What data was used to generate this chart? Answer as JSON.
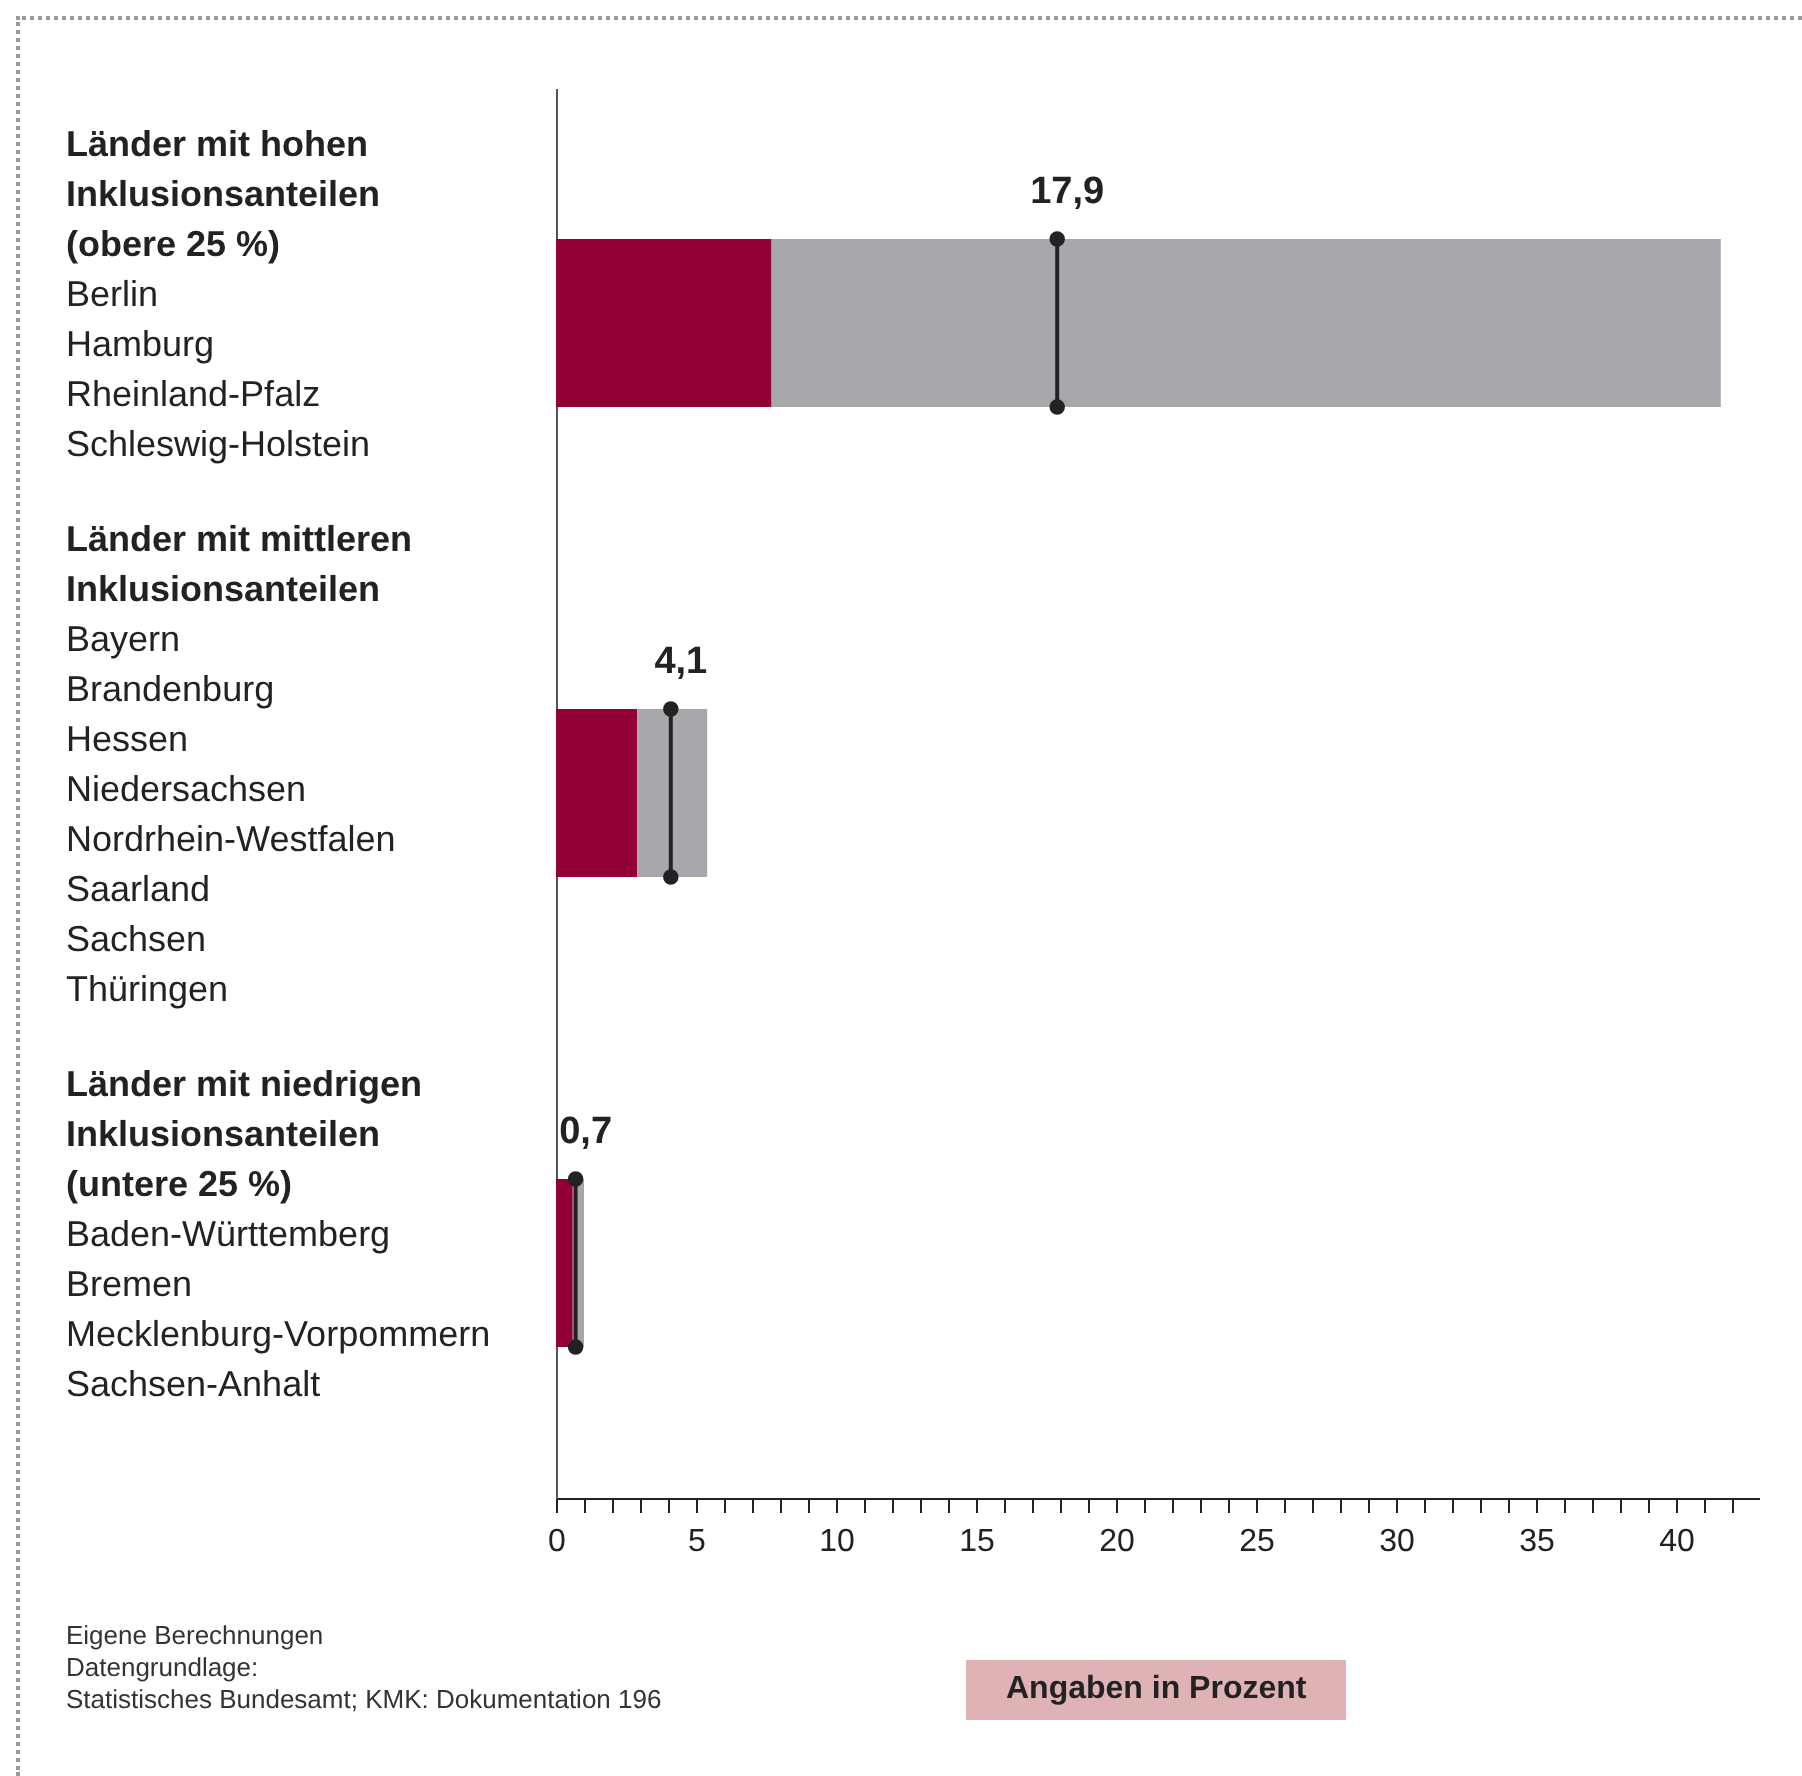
{
  "chart_data": {
    "type": "bar",
    "orientation": "horizontal",
    "stacked": true,
    "categories": [
      "Länder mit hohen\nInklusionsanteilen\n(obere 25 %)",
      "Länder mit mittleren\nInklusionsanteilen",
      "Länder mit niedrigen\nInklusionsanteilen\n(untere 25 %)"
    ],
    "series": [
      {
        "color": "#930036",
        "values": [
          7.7,
          2.9,
          0.6
        ]
      },
      {
        "color": "#a7a8ac",
        "values": [
          33.9,
          2.5,
          0.4
        ]
      },
      {
        "type": "scatter",
        "color": "#222222",
        "values": [
          17.9,
          4.1,
          0.7
        ],
        "value_labels": [
          "17,9",
          "4,1",
          "0,7"
        ]
      }
    ],
    "marker": "circle",
    "xlim": [
      0,
      43
    ],
    "xticks": [
      0,
      {
        "value": 1,
        "label": null
      },
      {
        "value": 2,
        "label": null
      },
      {
        "value": 3,
        "label": null
      },
      {
        "value": 4,
        "label": null
      },
      5,
      {
        "value": 6,
        "label": null
      },
      {
        "value": 7,
        "label": null
      },
      {
        "value": 8,
        "label": null
      },
      {
        "value": 9,
        "label": null
      },
      10,
      {
        "value": 11,
        "label": null
      },
      {
        "value": 12,
        "label": null
      },
      {
        "value": 13,
        "label": null
      },
      {
        "value": 14,
        "label": null
      },
      15,
      {
        "value": 16,
        "label": null
      },
      {
        "value": 17,
        "label": null
      },
      {
        "value": 18,
        "label": null
      },
      {
        "value": 19,
        "label": null
      },
      20,
      {
        "value": 21,
        "label": null
      },
      {
        "value": 22,
        "label": null
      },
      {
        "value": 23,
        "label": null
      },
      {
        "value": 24,
        "label": null
      },
      25,
      {
        "value": 26,
        "label": null
      },
      {
        "value": 27,
        "label": null
      },
      {
        "value": 28,
        "label": null
      },
      {
        "value": 29,
        "label": null
      },
      30,
      {
        "value": 31,
        "label": null
      },
      {
        "value": 32,
        "label": null
      },
      {
        "value": 33,
        "label": null
      },
      {
        "value": 34,
        "label": null
      },
      35,
      {
        "value": 36,
        "label": null
      },
      {
        "value": 37,
        "label": null
      },
      {
        "value": 38,
        "label": null
      },
      {
        "value": 39,
        "label": null
      },
      40,
      {
        "value": 41,
        "label": null
      },
      {
        "value": 42,
        "label": null
      }
    ],
    "xlabel": "Angaben in Prozent",
    "annotations": [
      "Berlin\nHamburg\nRheinland-Pfalz\nSchleswig-Holstein",
      "Bayern\nBrandenburg\nHessen\nNiedersachsen\nNordrhein-Westfalen\nSaarland\nSachsen\nThüringen",
      "Baden-Württemberg\nBremen\nMecklenburg-Vorpommern\nSachsen-Anhalt",
      "Eigene Berechnungen\nDatengrundlage:\nStatistisches Bundesamt; KMK: Dokumentation 196"
    ]
  }
}
